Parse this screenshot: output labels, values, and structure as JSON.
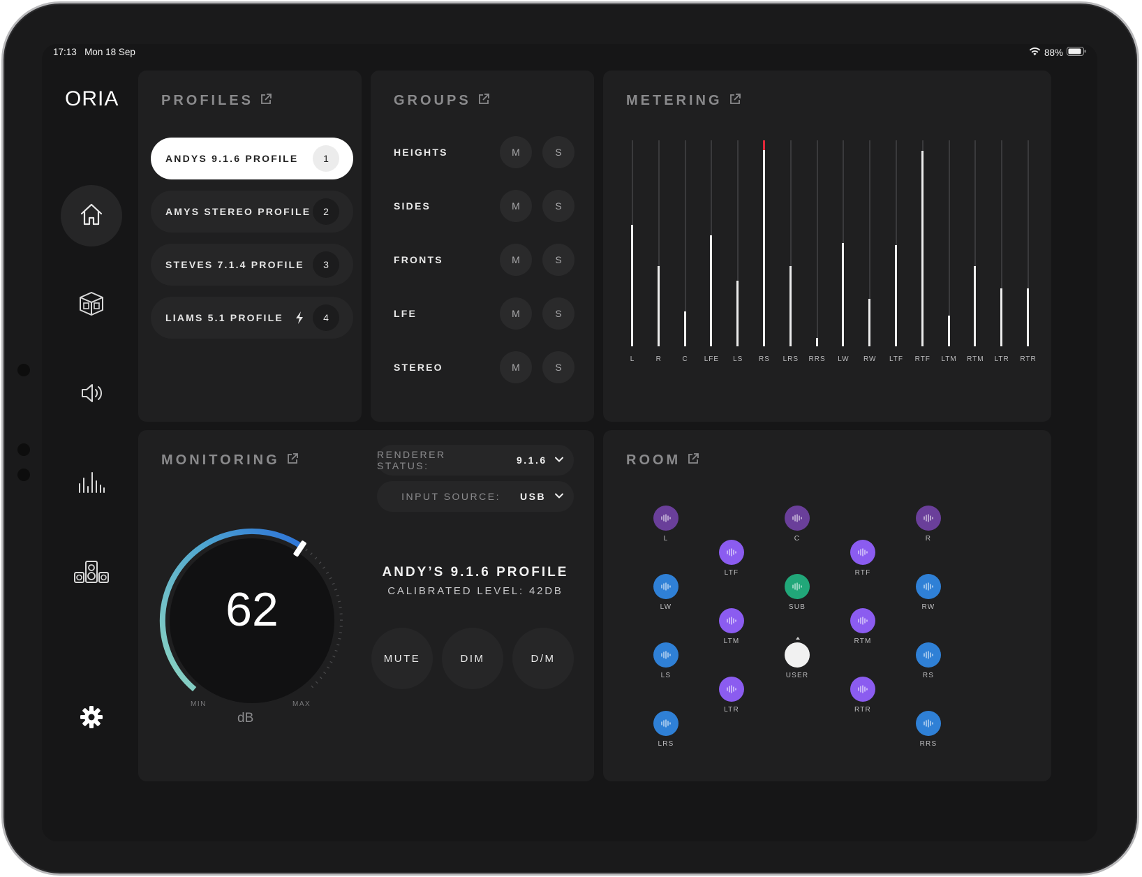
{
  "status_bar": {
    "time": "17:13",
    "date": "Mon 18 Sep",
    "battery": "88%"
  },
  "app": {
    "logo": "ORIA"
  },
  "nav": [
    {
      "icon": "home-icon",
      "active": true
    },
    {
      "icon": "room-box-icon",
      "active": false
    },
    {
      "icon": "speaker-volume-icon",
      "active": false
    },
    {
      "icon": "meter-bars-icon",
      "active": false
    },
    {
      "icon": "speakers-icon",
      "active": false
    },
    {
      "icon": "gear-icon",
      "active": false
    }
  ],
  "profiles": {
    "title": "PROFILES",
    "items": [
      {
        "label": "ANDYS 9.1.6 PROFILE",
        "number": "1",
        "active": true
      },
      {
        "label": "AMYS STEREO PROFILE",
        "number": "2",
        "active": false
      },
      {
        "label": "STEVES 7.1.4 PROFILE",
        "number": "3",
        "active": false
      },
      {
        "label": "LIAMS 5.1 PROFILE",
        "number": "4",
        "active": false,
        "icon": "bolt-icon"
      }
    ]
  },
  "groups": {
    "title": "GROUPS",
    "mute_label": "M",
    "solo_label": "S",
    "items": [
      {
        "label": "HEIGHTS"
      },
      {
        "label": "SIDES"
      },
      {
        "label": "FRONTS"
      },
      {
        "label": "LFE"
      },
      {
        "label": "STEREO"
      }
    ]
  },
  "metering": {
    "title": "METERING",
    "channels": [
      {
        "label": "L",
        "level": 0.59
      },
      {
        "label": "R",
        "level": 0.39
      },
      {
        "label": "C",
        "level": 0.17
      },
      {
        "label": "LFE",
        "level": 0.54
      },
      {
        "label": "LS",
        "level": 0.32
      },
      {
        "label": "RS",
        "level": 0.96,
        "clip": true
      },
      {
        "label": "LRS",
        "level": 0.39
      },
      {
        "label": "RRS",
        "level": 0.04
      },
      {
        "label": "LW",
        "level": 0.5
      },
      {
        "label": "RW",
        "level": 0.23
      },
      {
        "label": "LTF",
        "level": 0.49
      },
      {
        "label": "RTF",
        "level": 0.95
      },
      {
        "label": "LTM",
        "level": 0.15
      },
      {
        "label": "RTM",
        "level": 0.39
      },
      {
        "label": "LTR",
        "level": 0.28
      },
      {
        "label": "RTR",
        "level": 0.28
      }
    ]
  },
  "monitoring": {
    "title": "MONITORING",
    "renderer_status": {
      "label": "RENDERER STATUS:",
      "value": "9.1.6"
    },
    "input_source": {
      "label": "INPUT SOURCE:",
      "value": "USB"
    },
    "volume": {
      "value": "62",
      "min_label": "MIN",
      "max_label": "MAX",
      "unit": "dB",
      "fraction": 0.62
    },
    "profile_name": "ANDY’S 9.1.6 PROFILE",
    "calibrated_level": "CALIBRATED LEVEL: 42DB",
    "buttons": {
      "mute": "MUTE",
      "dim": "DIM",
      "dm": "D/M"
    }
  },
  "room": {
    "title": "ROOM",
    "colors": {
      "front": "#6a3f9a",
      "surround": "#2f80d6",
      "height": "#8b5cf0",
      "sub": "#21a779",
      "user": "#f1f1f1"
    },
    "nodes": [
      {
        "label": "L",
        "kind": "front"
      },
      {
        "label": "C",
        "kind": "front"
      },
      {
        "label": "R",
        "kind": "front"
      },
      {
        "label": "LTF",
        "kind": "height"
      },
      {
        "label": "RTF",
        "kind": "height"
      },
      {
        "label": "LW",
        "kind": "surround"
      },
      {
        "label": "SUB",
        "kind": "sub"
      },
      {
        "label": "RW",
        "kind": "surround"
      },
      {
        "label": "LTM",
        "kind": "height"
      },
      {
        "label": "RTM",
        "kind": "height"
      },
      {
        "label": "LS",
        "kind": "surround"
      },
      {
        "label": "USER",
        "kind": "user"
      },
      {
        "label": "RS",
        "kind": "surround"
      },
      {
        "label": "LTR",
        "kind": "height"
      },
      {
        "label": "RTR",
        "kind": "height"
      },
      {
        "label": "LRS",
        "kind": "surround"
      },
      {
        "label": "RRS",
        "kind": "surround"
      }
    ]
  }
}
